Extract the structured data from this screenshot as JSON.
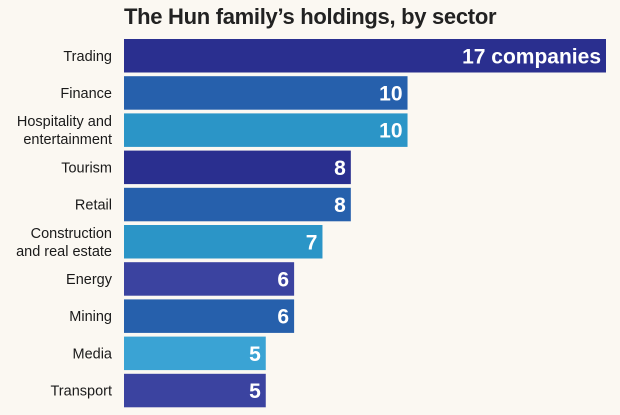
{
  "chart_data": {
    "type": "bar",
    "orientation": "horizontal",
    "title": "The Hun family’s holdings, by sector",
    "categories": [
      [
        "Trading"
      ],
      [
        "Finance"
      ],
      [
        "Hospitality and",
        "entertainment"
      ],
      [
        "Tourism"
      ],
      [
        "Retail"
      ],
      [
        "Construction",
        "and real estate"
      ],
      [
        "Energy"
      ],
      [
        "Mining"
      ],
      [
        "Media"
      ],
      [
        "Transport"
      ]
    ],
    "values": [
      17,
      10,
      10,
      8,
      8,
      7,
      6,
      6,
      5,
      5
    ],
    "value_labels": [
      "17 companies",
      "10",
      "10",
      "8",
      "8",
      "7",
      "6",
      "6",
      "5",
      "5"
    ],
    "bar_colors": [
      "#2a2f8f",
      "#2660ac",
      "#2b95c7",
      "#2a2f8f",
      "#2660ac",
      "#2b95c7",
      "#3b43a0",
      "#2660ac",
      "#3aa3d4",
      "#3b43a0"
    ],
    "xlim": [
      0,
      17
    ],
    "grid": false,
    "legend": "none"
  }
}
